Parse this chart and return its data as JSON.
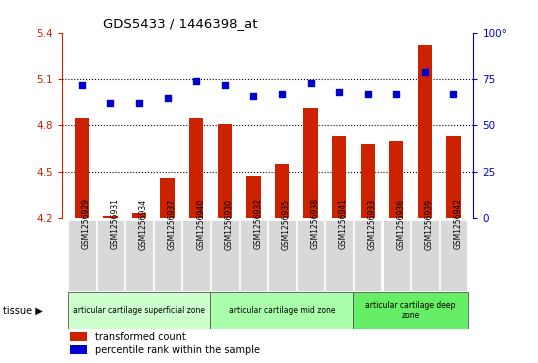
{
  "title": "GDS5433 / 1446398_at",
  "samples": [
    "GSM1256929",
    "GSM1256931",
    "GSM1256934",
    "GSM1256937",
    "GSM1256940",
    "GSM1256930",
    "GSM1256932",
    "GSM1256935",
    "GSM1256938",
    "GSM1256941",
    "GSM1256933",
    "GSM1256936",
    "GSM1256939",
    "GSM1256942"
  ],
  "bar_values": [
    4.85,
    4.21,
    4.23,
    4.46,
    4.85,
    4.81,
    4.47,
    4.55,
    4.91,
    4.73,
    4.68,
    4.7,
    5.32,
    4.73
  ],
  "dot_values": [
    72,
    62,
    62,
    65,
    74,
    72,
    66,
    67,
    73,
    68,
    67,
    67,
    79,
    67
  ],
  "ylim_left": [
    4.2,
    5.4
  ],
  "ylim_right": [
    0,
    100
  ],
  "yticks_left": [
    4.2,
    4.5,
    4.8,
    5.1,
    5.4
  ],
  "yticks_right": [
    0,
    25,
    50,
    75,
    100
  ],
  "ytick_labels_left": [
    "4.2",
    "4.5",
    "4.8",
    "5.1",
    "5.4"
  ],
  "ytick_labels_right": [
    "0",
    "25",
    "50",
    "75",
    "100°"
  ],
  "hlines": [
    5.1,
    4.8,
    4.5
  ],
  "bar_color": "#cc2200",
  "dot_color": "#0000cc",
  "bar_bottom": 4.2,
  "groups": [
    {
      "label": "articular cartilage superficial zone",
      "start": 0,
      "end": 4,
      "color": "#ccffcc"
    },
    {
      "label": "articular cartilage mid zone",
      "start": 5,
      "end": 9,
      "color": "#aaffaa"
    },
    {
      "label": "articular cartilage deep\nzone",
      "start": 10,
      "end": 13,
      "color": "#66ee66"
    }
  ],
  "tissue_label": "tissue",
  "tissue_arrow": "▶",
  "legend_bar": "transformed count",
  "legend_dot": "percentile rank within the sample",
  "sample_bg_color": "#d8d8d8",
  "plot_bg": "#ffffff",
  "fig_bg": "#ffffff"
}
